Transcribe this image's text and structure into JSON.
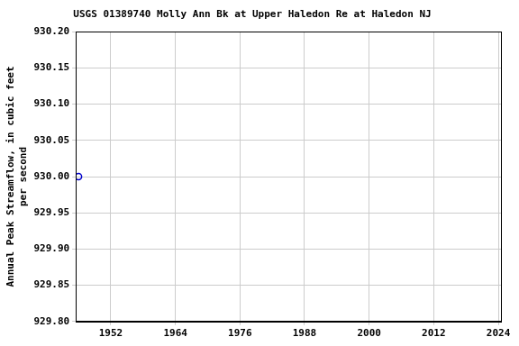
{
  "chart_data": {
    "type": "scatter",
    "title": "USGS 01389740 Molly Ann Bk at Upper Haledon Re at Haledon NJ",
    "ylabel": [
      "Annual Peak Streamflow, in cubic feet",
      "per second"
    ],
    "x": [
      1946
    ],
    "values": [
      930.0
    ],
    "color": "#0000cc",
    "marker": "open_circle",
    "xlim": [
      1945.5,
      2024.5
    ],
    "xticks": [
      1952,
      1964,
      1976,
      1988,
      2000,
      2012,
      2024
    ],
    "ylim": [
      929.8,
      930.2
    ],
    "yticks": [
      {
        "value": 929.8,
        "label": "929.80"
      },
      {
        "value": 929.85,
        "label": "929.85"
      },
      {
        "value": 929.9,
        "label": "929.90"
      },
      {
        "value": 929.95,
        "label": "929.95"
      },
      {
        "value": 930.0,
        "label": "930.00"
      },
      {
        "value": 930.05,
        "label": "930.05"
      },
      {
        "value": 930.1,
        "label": "930.10"
      },
      {
        "value": 930.15,
        "label": "930.15"
      },
      {
        "value": 930.2,
        "label": "930.20"
      }
    ],
    "grid": true
  }
}
